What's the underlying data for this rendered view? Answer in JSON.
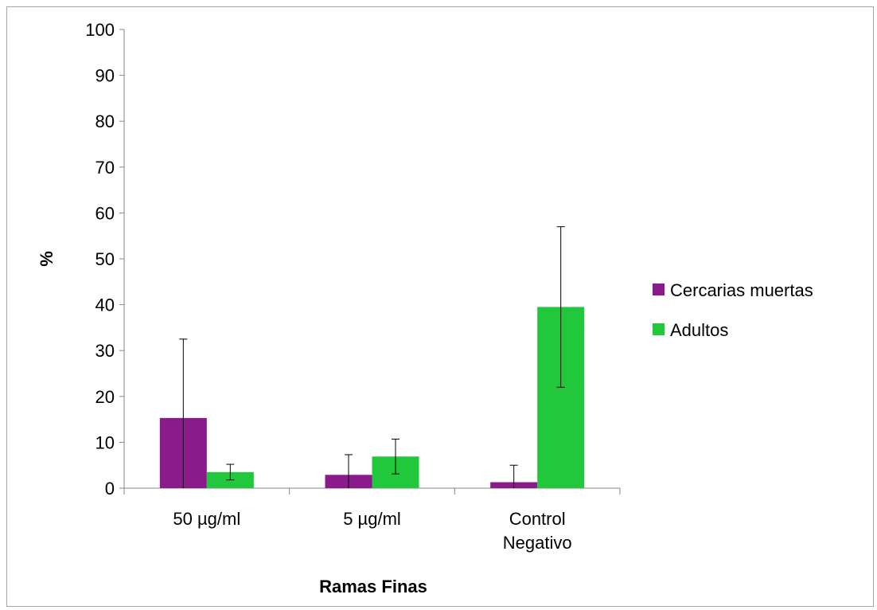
{
  "chart_data": {
    "type": "bar",
    "title": "",
    "xlabel": "Ramas Finas",
    "ylabel": "%",
    "ylim": [
      0,
      100
    ],
    "yticks": [
      0,
      10,
      20,
      30,
      40,
      50,
      60,
      70,
      80,
      90,
      100
    ],
    "categories": [
      [
        "50 µg/ml"
      ],
      [
        "5 µg/ml"
      ],
      [
        "Control",
        "Negativo"
      ]
    ],
    "series": [
      {
        "name": "Cercarias muertas",
        "color": "#8b1a8b",
        "values": [
          15.3,
          2.9,
          1.3
        ],
        "error": [
          17.2,
          4.4,
          3.7
        ]
      },
      {
        "name": "Adultos",
        "color": "#22c83c",
        "values": [
          3.5,
          6.9,
          39.5
        ],
        "error": [
          1.7,
          3.8,
          17.5
        ]
      }
    ],
    "grid": false,
    "legend_position": "right"
  }
}
